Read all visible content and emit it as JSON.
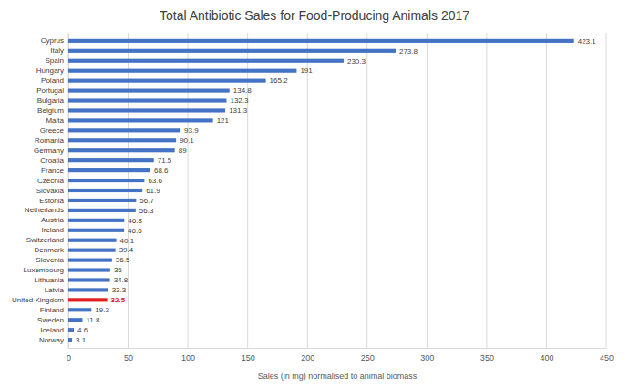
{
  "chart_data": {
    "type": "bar",
    "orientation": "horizontal",
    "title": "Total Antibiotic Sales for Food-Producing Animals 2017",
    "x_label": "Sales (in mg) normalised to animal biomass",
    "categories": [
      "Cyprus",
      "Italy",
      "Spain",
      "Hungary",
      "Poland",
      "Portugal",
      "Bulgaria",
      "Belgium",
      "Malta",
      "Greece",
      "Romania",
      "Germany",
      "Croatia",
      "France",
      "Czechia",
      "Slovakia",
      "Estonia",
      "Netherlands",
      "Austria",
      "Ireland",
      "Switzerland",
      "Denmark",
      "Slovenia",
      "Luxembourg",
      "Lithuania",
      "Latvia",
      "United Kingdom",
      "Finland",
      "Sweden",
      "Iceland",
      "Norway"
    ],
    "values": [
      423.1,
      273.8,
      230.3,
      191,
      165.2,
      134.8,
      132.3,
      131.3,
      121,
      93.9,
      90.1,
      89,
      71.5,
      68.6,
      63.6,
      61.9,
      56.7,
      56.3,
      46.8,
      46.6,
      40.1,
      39.4,
      36.5,
      35,
      34.8,
      33.3,
      32.5,
      19.3,
      11.8,
      4.6,
      3.1
    ],
    "color": "#4472c4",
    "colors": [
      "#4472c4",
      "#4472c4",
      "#4472c4",
      "#4472c4",
      "#4472c4",
      "#4472c4",
      "#4472c4",
      "#4472c4",
      "#4472c4",
      "#4472c4",
      "#4472c4",
      "#4472c4",
      "#4472c4",
      "#4472c4",
      "#4472c4",
      "#4472c4",
      "#4472c4",
      "#4472c4",
      "#4472c4",
      "#4472c4",
      "#4472c4",
      "#4472c4",
      "#4472c4",
      "#4472c4",
      "#4472c4",
      "#4472c4",
      "#e02020",
      "#4472c4",
      "#4472c4",
      "#4472c4",
      "#4472c4"
    ],
    "xlim": [
      0,
      450
    ],
    "xticks": [
      0,
      50,
      100,
      150,
      200,
      250,
      300,
      350,
      400,
      450
    ],
    "grid": true,
    "data_labels": true
  }
}
